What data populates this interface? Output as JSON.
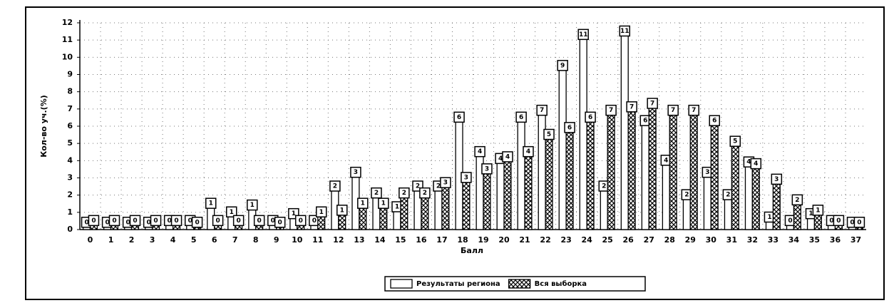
{
  "chart_data": {
    "type": "bar",
    "ylabel": "Кол-во уч.(%)",
    "xlabel": "Балл",
    "categories": [
      "0",
      "1",
      "2",
      "3",
      "4",
      "5",
      "6",
      "7",
      "8",
      "9",
      "10",
      "11",
      "12",
      "13",
      "14",
      "15",
      "16",
      "17",
      "18",
      "19",
      "20",
      "21",
      "22",
      "23",
      "24",
      "25",
      "26",
      "27",
      "28",
      "29",
      "30",
      "31",
      "32",
      "33",
      "34",
      "35",
      "36",
      "37"
    ],
    "series": [
      {
        "name": "Результаты региона",
        "color": "#ffffff",
        "hatch": false,
        "values": [
          0.3,
          0.3,
          0.3,
          0.3,
          0.4,
          0.4,
          1.4,
          0.9,
          1.3,
          0.4,
          0.8,
          0.4,
          2.4,
          3.2,
          2.0,
          1.2,
          2.4,
          2.4,
          6.4,
          4.4,
          4.0,
          6.4,
          6.8,
          9.4,
          11.2,
          2.4,
          11.4,
          6.2,
          3.9,
          1.9,
          3.2,
          1.9,
          3.8,
          0.6,
          0.4,
          0.8,
          0.4,
          0.3
        ],
        "value_labels": [
          "0",
          "0",
          "0",
          "0",
          "0",
          "0",
          "1",
          "1",
          "1",
          "0",
          "1",
          "0",
          "2",
          "3",
          "2",
          "1",
          "2",
          "2",
          "6",
          "4",
          "4",
          "6",
          "7",
          "9",
          "11",
          "2",
          "11",
          "6",
          "4",
          "2",
          "3",
          "2",
          "4",
          "1",
          "0",
          "1",
          "0",
          "0"
        ]
      },
      {
        "name": "Вся выборка",
        "color": "#000000",
        "hatch": true,
        "values": [
          0.4,
          0.4,
          0.4,
          0.4,
          0.4,
          0.3,
          0.4,
          0.4,
          0.4,
          0.3,
          0.4,
          0.9,
          1.0,
          1.4,
          1.4,
          2.0,
          2.0,
          2.6,
          2.9,
          3.4,
          4.1,
          4.4,
          5.4,
          5.8,
          6.4,
          6.8,
          7.0,
          7.2,
          6.8,
          6.8,
          6.2,
          5.0,
          3.7,
          2.8,
          1.6,
          1.0,
          0.4,
          0.3
        ],
        "value_labels": [
          "0",
          "0",
          "0",
          "0",
          "0",
          "0",
          "0",
          "0",
          "0",
          "0",
          "0",
          "1",
          "1",
          "1",
          "1",
          "2",
          "2",
          "3",
          "3",
          "3",
          "4",
          "4",
          "5",
          "6",
          "6",
          "7",
          "7",
          "7",
          "7",
          "7",
          "6",
          "5",
          "4",
          "3",
          "2",
          "1",
          "0",
          "0"
        ]
      }
    ],
    "ylim": [
      0,
      12
    ],
    "yticks": [
      0,
      1,
      2,
      3,
      4,
      5,
      6,
      7,
      8,
      9,
      10,
      11,
      12
    ],
    "grid": true,
    "legend": "bottom"
  }
}
